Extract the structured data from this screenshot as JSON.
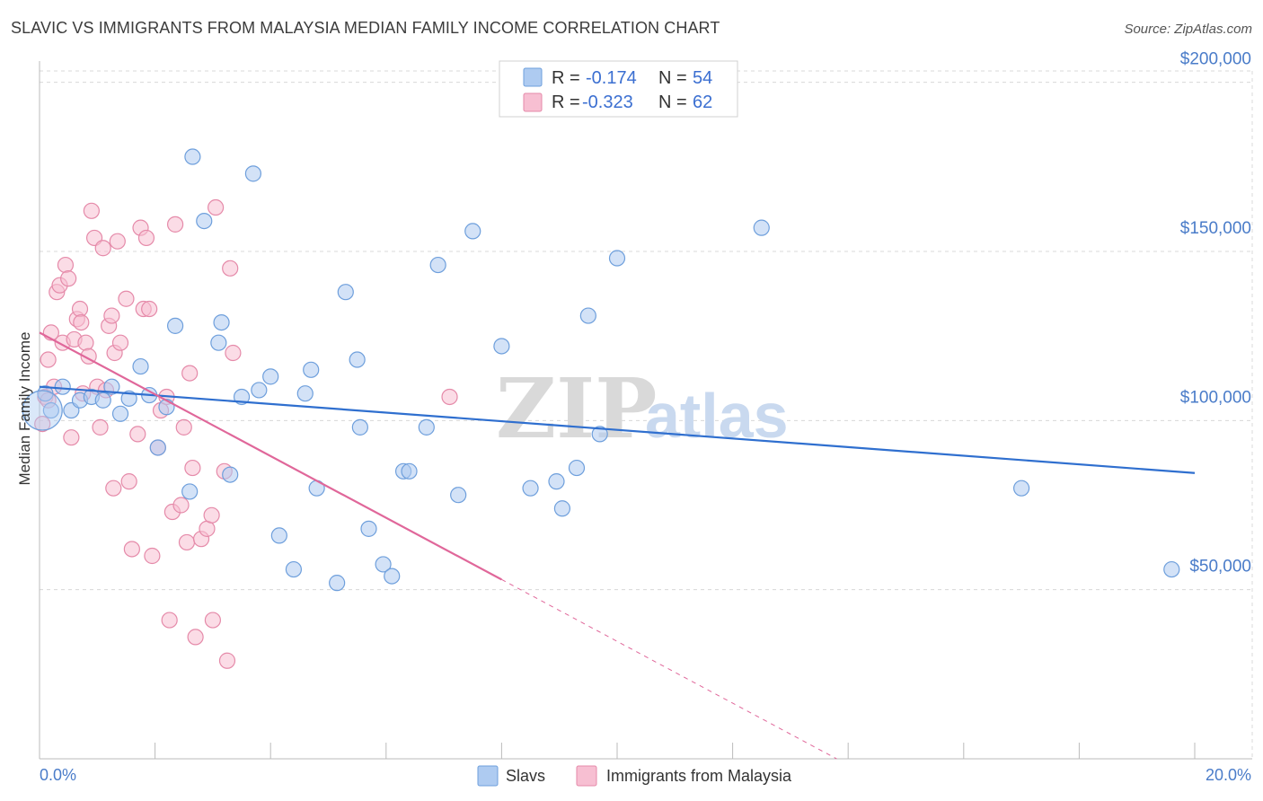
{
  "title": "SLAVIC VS IMMIGRANTS FROM MALAYSIA MEDIAN FAMILY INCOME CORRELATION CHART",
  "source": "Source: ZipAtlas.com",
  "watermark": {
    "zip": "ZIP",
    "atlas": "atlas"
  },
  "legend_top": {
    "rows": [
      {
        "r_label": "R =",
        "r_value": "-0.174",
        "n_label": "N =",
        "n_value": "54"
      },
      {
        "r_label": "R =",
        "r_value": "-0.323",
        "n_label": "N =",
        "n_value": "62"
      }
    ]
  },
  "legend_bottom": [
    "Slavs",
    "Immigrants from Malaysia"
  ],
  "colors": {
    "slavs_fill": "#aecbf1",
    "slavs_stroke": "#6e9fdc",
    "slavs_line": "#2f6fcf",
    "malaysia_fill": "#f7bfd2",
    "malaysia_stroke": "#e58aa9",
    "malaysia_line": "#e0679a",
    "grid": "#d8d8d8",
    "tick_text": "#4a7cc9"
  },
  "chart_data": {
    "type": "scatter",
    "title": "SLAVIC VS IMMIGRANTS FROM MALAYSIA MEDIAN FAMILY INCOME CORRELATION CHART",
    "xlabel": "",
    "ylabel": "Median Family Income",
    "xlim": [
      0,
      20
    ],
    "ylim": [
      0,
      210000
    ],
    "x_tick_labels": [
      "0.0%",
      "20.0%"
    ],
    "y_ticks": [
      {
        "value": 50000,
        "label": "$50,000"
      },
      {
        "value": 100000,
        "label": "$100,000"
      },
      {
        "value": 150000,
        "label": "$150,000"
      },
      {
        "value": 200000,
        "label": "$200,000"
      }
    ],
    "grid": true,
    "legend_position": "top-center",
    "series": [
      {
        "name": "Slavs",
        "r": -0.174,
        "n": 54,
        "trend": {
          "x": [
            0,
            20
          ],
          "y": [
            110000,
            84500
          ],
          "extrapolated_to": null
        },
        "points": [
          [
            0.2,
            103000
          ],
          [
            0.4,
            110000
          ],
          [
            0.55,
            103000
          ],
          [
            0.7,
            106000
          ],
          [
            0.9,
            107000
          ],
          [
            1.1,
            106000
          ],
          [
            1.25,
            110000
          ],
          [
            1.4,
            102000
          ],
          [
            1.55,
            106500
          ],
          [
            1.75,
            116000
          ],
          [
            1.9,
            107500
          ],
          [
            2.05,
            92000
          ],
          [
            2.2,
            104000
          ],
          [
            2.35,
            128000
          ],
          [
            2.6,
            79000
          ],
          [
            2.65,
            178000
          ],
          [
            2.85,
            159000
          ],
          [
            3.1,
            123000
          ],
          [
            3.15,
            129000
          ],
          [
            3.3,
            84000
          ],
          [
            3.5,
            107000
          ],
          [
            3.7,
            173000
          ],
          [
            3.8,
            109000
          ],
          [
            4.0,
            113000
          ],
          [
            4.15,
            66000
          ],
          [
            4.4,
            56000
          ],
          [
            4.6,
            108000
          ],
          [
            4.7,
            115000
          ],
          [
            4.8,
            80000
          ],
          [
            5.15,
            52000
          ],
          [
            5.3,
            138000
          ],
          [
            5.5,
            118000
          ],
          [
            5.55,
            98000
          ],
          [
            5.7,
            68000
          ],
          [
            5.95,
            57500
          ],
          [
            6.1,
            54000
          ],
          [
            6.3,
            85000
          ],
          [
            6.4,
            85000
          ],
          [
            6.7,
            98000
          ],
          [
            6.9,
            146000
          ],
          [
            7.25,
            78000
          ],
          [
            7.5,
            156000
          ],
          [
            8.0,
            122000
          ],
          [
            8.5,
            80000
          ],
          [
            8.95,
            82000
          ],
          [
            9.05,
            74000
          ],
          [
            9.3,
            86000
          ],
          [
            9.5,
            131000
          ],
          [
            9.7,
            96000
          ],
          [
            10.0,
            148000
          ],
          [
            12.5,
            157000
          ],
          [
            17.0,
            80000
          ],
          [
            19.6,
            56000
          ],
          [
            0.1,
            108000
          ]
        ]
      },
      {
        "name": "Immigrants from Malaysia",
        "r": -0.323,
        "n": 62,
        "trend": {
          "x": [
            0,
            8.0
          ],
          "y": [
            126000,
            53000
          ],
          "extrapolated_to": {
            "x": 13.8,
            "y": 0
          }
        },
        "points": [
          [
            0.05,
            99000
          ],
          [
            0.1,
            107000
          ],
          [
            0.15,
            118000
          ],
          [
            0.2,
            126000
          ],
          [
            0.25,
            110000
          ],
          [
            0.3,
            138000
          ],
          [
            0.35,
            140000
          ],
          [
            0.4,
            123000
          ],
          [
            0.45,
            146000
          ],
          [
            0.5,
            142000
          ],
          [
            0.55,
            95000
          ],
          [
            0.6,
            124000
          ],
          [
            0.65,
            130000
          ],
          [
            0.7,
            133000
          ],
          [
            0.72,
            129000
          ],
          [
            0.75,
            108000
          ],
          [
            0.8,
            123000
          ],
          [
            0.85,
            119000
          ],
          [
            0.9,
            162000
          ],
          [
            0.95,
            154000
          ],
          [
            1.0,
            110000
          ],
          [
            1.05,
            98000
          ],
          [
            1.1,
            151000
          ],
          [
            1.15,
            109000
          ],
          [
            1.2,
            128000
          ],
          [
            1.25,
            131000
          ],
          [
            1.3,
            120000
          ],
          [
            1.35,
            153000
          ],
          [
            1.4,
            123000
          ],
          [
            1.5,
            136000
          ],
          [
            1.55,
            82000
          ],
          [
            1.6,
            62000
          ],
          [
            1.7,
            96000
          ],
          [
            1.75,
            157000
          ],
          [
            1.8,
            133000
          ],
          [
            1.85,
            154000
          ],
          [
            1.9,
            133000
          ],
          [
            1.95,
            60000
          ],
          [
            2.05,
            92000
          ],
          [
            2.1,
            103000
          ],
          [
            2.2,
            107000
          ],
          [
            2.25,
            41000
          ],
          [
            2.3,
            73000
          ],
          [
            2.35,
            158000
          ],
          [
            2.45,
            75000
          ],
          [
            2.5,
            98000
          ],
          [
            2.55,
            64000
          ],
          [
            2.6,
            114000
          ],
          [
            2.65,
            86000
          ],
          [
            2.7,
            36000
          ],
          [
            2.8,
            65000
          ],
          [
            2.9,
            68000
          ],
          [
            3.0,
            41000
          ],
          [
            3.05,
            163000
          ],
          [
            3.2,
            85000
          ],
          [
            3.25,
            29000
          ],
          [
            3.3,
            145000
          ],
          [
            3.35,
            120000
          ],
          [
            7.1,
            107000
          ],
          [
            0.15,
            106000
          ],
          [
            1.28,
            80000
          ],
          [
            2.98,
            72000
          ]
        ]
      }
    ]
  }
}
